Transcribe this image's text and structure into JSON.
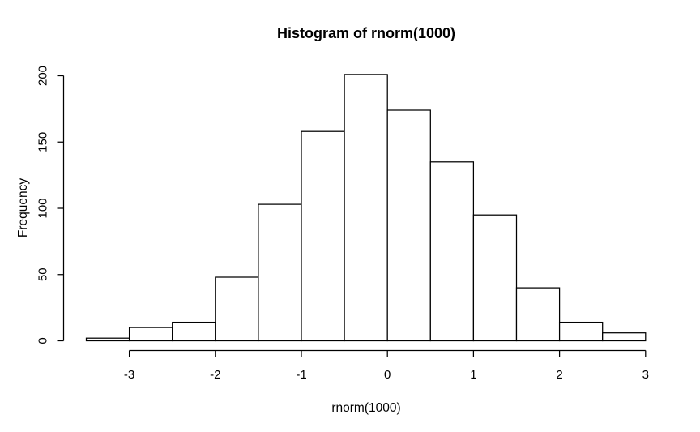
{
  "window": {
    "background": "#ffffff"
  },
  "chart_data": {
    "type": "bar",
    "subtype": "histogram",
    "title": "Histogram of rnorm(1000)",
    "xlabel": "rnorm(1000)",
    "ylabel": "Frequency",
    "bin_width": 0.5,
    "bin_edges": [
      -3.5,
      -3.0,
      -2.5,
      -2.0,
      -1.5,
      -1.0,
      -0.5,
      0.0,
      0.5,
      1.0,
      1.5,
      2.0,
      2.5,
      3.0
    ],
    "counts": [
      2,
      10,
      14,
      48,
      103,
      158,
      201,
      174,
      135,
      95,
      40,
      14,
      6
    ],
    "total_n": 1000,
    "x_ticks": [
      -3,
      -2,
      -1,
      0,
      1,
      2,
      3
    ],
    "x_tick_labels": [
      "-3",
      "-2",
      "-1",
      "0",
      "1",
      "2",
      "3"
    ],
    "y_ticks": [
      0,
      50,
      100,
      150,
      200
    ],
    "y_tick_labels": [
      "0",
      "50",
      "100",
      "150",
      "200"
    ],
    "xlim": [
      -3.5,
      3.0
    ],
    "ylim": [
      0,
      201
    ],
    "grid": false,
    "legend": "none",
    "bar_fill": "#ffffff",
    "bar_stroke": "#000000",
    "axis_color": "#000000",
    "text_color": "#000000"
  }
}
